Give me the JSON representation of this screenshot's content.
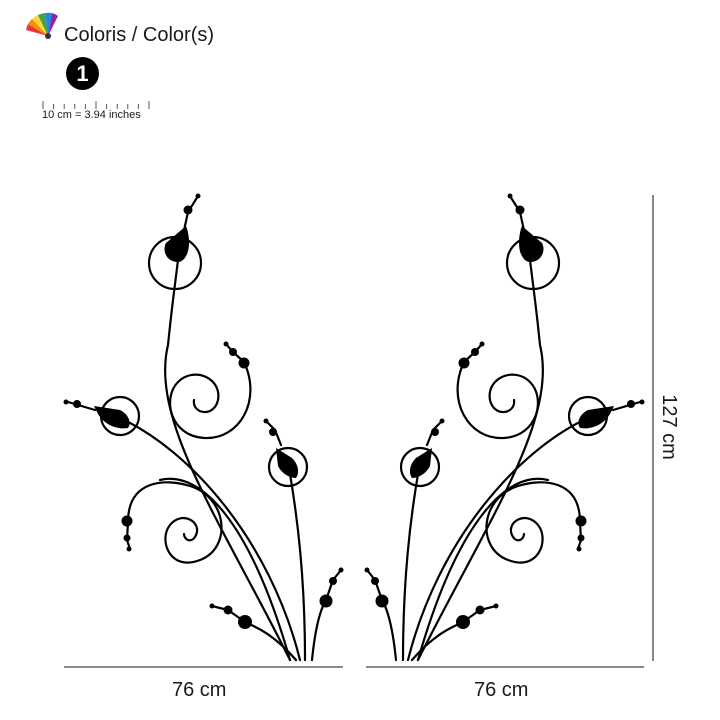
{
  "header": {
    "palette_icon": "color-fan-icon",
    "title": "Coloris / Color(s)",
    "color_number": "1",
    "color_hex": "#000000"
  },
  "scale": {
    "label": "10 cm = 3.94 inches"
  },
  "dimensions": {
    "width_left": "76 cm",
    "width_right": "76 cm",
    "height": "127 cm"
  },
  "artwork": {
    "subject": "floral-vine-decal",
    "color": "#000000"
  }
}
